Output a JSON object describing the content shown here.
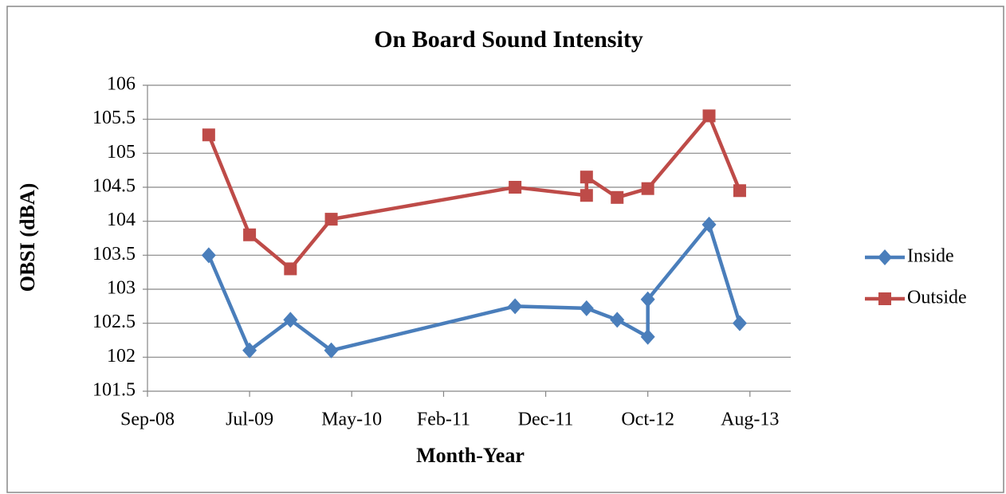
{
  "chart_data": {
    "type": "line",
    "title": "On Board Sound Intensity",
    "x_label": "Month-Year",
    "y_label": "OBSI (dBA)",
    "series": [
      {
        "name": "Inside",
        "color": "#4a7ebb",
        "marker": "diamond",
        "x": [
          "2009-03",
          "2009-07",
          "2009-11",
          "2010-03",
          "2011-09",
          "2012-04",
          "2012-07",
          "2012-10",
          "2012-10",
          "2013-04",
          "2013-07"
        ],
        "values": [
          103.5,
          102.1,
          102.55,
          102.1,
          102.75,
          102.72,
          102.55,
          102.3,
          102.85,
          103.95,
          102.5
        ]
      },
      {
        "name": "Outside",
        "color": "#be4b48",
        "marker": "square",
        "x": [
          "2009-03",
          "2009-07",
          "2009-11",
          "2010-03",
          "2011-09",
          "2012-04",
          "2012-04",
          "2012-07",
          "2012-10",
          "2013-04",
          "2013-07"
        ],
        "values": [
          105.27,
          103.8,
          103.3,
          104.03,
          104.5,
          104.38,
          104.65,
          104.35,
          104.48,
          105.55,
          104.45
        ]
      }
    ],
    "xlim": [
      "2008-09",
      "2013-12"
    ],
    "xticks": [
      {
        "value": "2008-09",
        "label": "Sep-08"
      },
      {
        "value": "2009-07",
        "label": "Jul-09"
      },
      {
        "value": "2010-05",
        "label": "May-10"
      },
      {
        "value": "2011-02",
        "label": "Feb-11"
      },
      {
        "value": "2011-12",
        "label": "Dec-11"
      },
      {
        "value": "2012-10",
        "label": "Oct-12"
      },
      {
        "value": "2013-08",
        "label": "Aug-13"
      }
    ],
    "ylim": [
      101.5,
      106
    ],
    "yticks": [
      101.5,
      102,
      102.5,
      103,
      103.5,
      104,
      104.5,
      105,
      105.5,
      106
    ],
    "grid": true,
    "legend": "right"
  }
}
